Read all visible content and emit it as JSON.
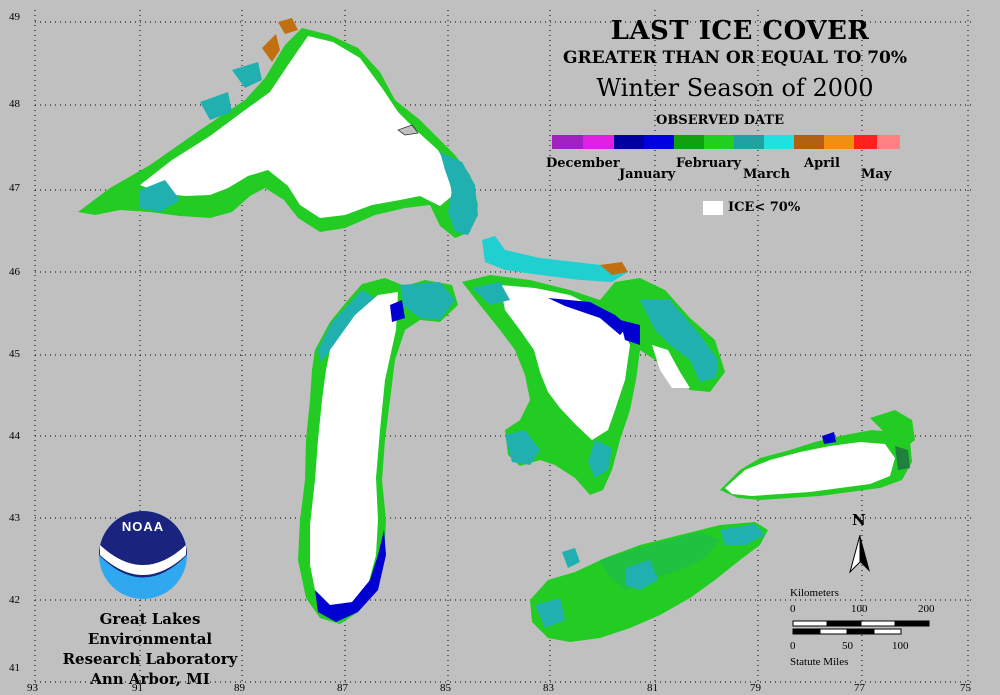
{
  "title": {
    "line1": "LAST ICE COVER",
    "line2": "GREATER THAN OR EQUAL TO 70%",
    "line3": "Winter Season of 2000"
  },
  "legend": {
    "heading": "OBSERVED DATE",
    "months": [
      "December",
      "January",
      "February",
      "March",
      "April",
      "May"
    ],
    "ice_label": "ICE< 70%",
    "colors": {
      "december": "#a020c0",
      "january": "#0000d0",
      "february": "#22cc22",
      "march": "#20b0b0",
      "april": "#c07010",
      "may": "#ff3030",
      "ice_lt_70": "#ffffff",
      "land": "#c0c0c0"
    }
  },
  "axes": {
    "latitudes": [
      "49",
      "48",
      "47",
      "46",
      "45",
      "44",
      "43",
      "42",
      "41"
    ],
    "longitudes": [
      "93",
      "91",
      "89",
      "87",
      "85",
      "83",
      "81",
      "79",
      "77",
      "75"
    ]
  },
  "org": {
    "line1": "Great Lakes Environmental",
    "line2": "Research Laboratory",
    "line3": "Ann Arbor, MI",
    "logo_text": "NOAA"
  },
  "scale": {
    "km_title": "Kilometers",
    "km_ticks": [
      "0",
      "100",
      "200"
    ],
    "mi_ticks": [
      "0",
      "50",
      "100"
    ],
    "mi_title": "Statute Miles"
  },
  "north_label": "N"
}
